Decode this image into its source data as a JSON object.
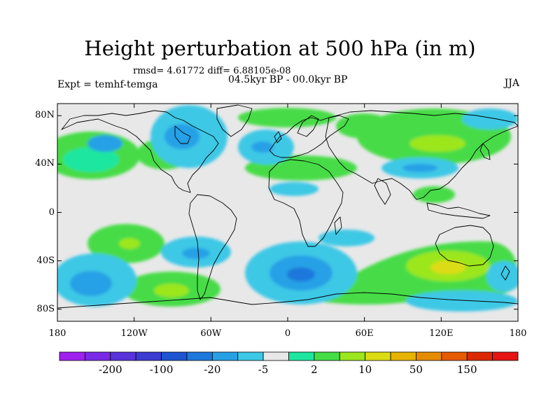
{
  "figure": {
    "title": "Height perturbation at 500 hPa (in m)",
    "stats": "rmsd= 4.61772 diff= 6.88105e-08",
    "period": "04.5kyr BP - 00.0kyr BP",
    "experiment": "Expt = temhf-temga",
    "season": "JJA"
  },
  "map": {
    "projection": "cylindrical-equidistant",
    "lon_range": [
      -180,
      180
    ],
    "lat_range": [
      -90,
      90
    ],
    "lat_ticks": [
      {
        "value": 80,
        "label": "80N"
      },
      {
        "value": 40,
        "label": "40N"
      },
      {
        "value": 0,
        "label": "0"
      },
      {
        "value": -40,
        "label": "40S"
      },
      {
        "value": -80,
        "label": "80S"
      }
    ],
    "lon_ticks": [
      {
        "value": -180,
        "label": "180"
      },
      {
        "value": -120,
        "label": "120W"
      },
      {
        "value": -60,
        "label": "60W"
      },
      {
        "value": 0,
        "label": "0"
      },
      {
        "value": 60,
        "label": "60E"
      },
      {
        "value": 120,
        "label": "120E"
      },
      {
        "value": 180,
        "label": "180"
      }
    ],
    "background_color": "#e8e8e8",
    "coastline_color": "#000000"
  },
  "colorbar": {
    "colors": [
      "#a020f0",
      "#7a2ae6",
      "#5a32dc",
      "#3c3cd2",
      "#1e55d2",
      "#1e78dc",
      "#28a0e6",
      "#3cc8e6",
      "#e8e8e8",
      "#1ee6a0",
      "#46dc46",
      "#9ce61e",
      "#dcdc14",
      "#e6b400",
      "#e68c00",
      "#e65a00",
      "#dc2800",
      "#e61414"
    ],
    "labels": [
      "-200",
      "-100",
      "-20",
      "-5",
      "2",
      "10",
      "50",
      "150"
    ]
  }
}
